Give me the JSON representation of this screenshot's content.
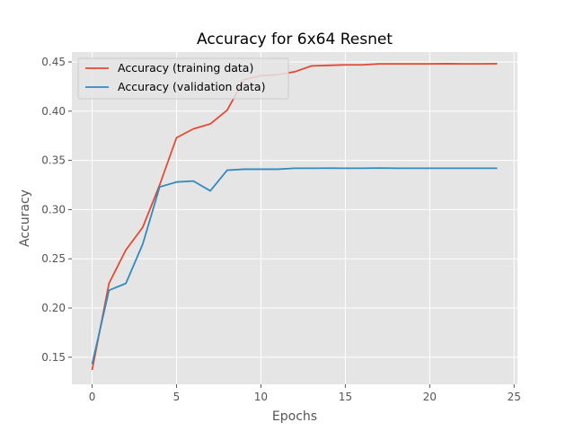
{
  "chart_data": {
    "type": "line",
    "title": "Accuracy for 6x64 Resnet",
    "xlabel": "Epochs",
    "ylabel": "Accuracy",
    "xlim": [
      -1.2,
      25.2
    ],
    "ylim": [
      0.1225,
      0.46
    ],
    "xticks": [
      0,
      5,
      10,
      15,
      20,
      25
    ],
    "yticks": [
      0.15,
      0.2,
      0.25,
      0.3,
      0.35,
      0.4,
      0.45
    ],
    "xtick_labels": [
      "0",
      "5",
      "10",
      "15",
      "20",
      "25"
    ],
    "ytick_labels": [
      "0.15",
      "0.20",
      "0.25",
      "0.30",
      "0.35",
      "0.40",
      "0.45"
    ],
    "grid": true,
    "legend_position": "top-left",
    "x": [
      0,
      1,
      2,
      3,
      4,
      5,
      6,
      7,
      8,
      9,
      10,
      11,
      12,
      13,
      14,
      15,
      16,
      17,
      18,
      19,
      20,
      21,
      22,
      23,
      24
    ],
    "series": [
      {
        "name": "Accuracy (training data)",
        "color": "#E24A33",
        "values": [
          0.137,
          0.225,
          0.259,
          0.282,
          0.325,
          0.373,
          0.382,
          0.387,
          0.401,
          0.432,
          0.436,
          0.437,
          0.44,
          0.446,
          0.4465,
          0.447,
          0.447,
          0.448,
          0.448,
          0.448,
          0.448,
          0.4482,
          0.448,
          0.448,
          0.4482
        ]
      },
      {
        "name": "Accuracy (validation data)",
        "color": "#348ABD",
        "values": [
          0.143,
          0.218,
          0.225,
          0.265,
          0.323,
          0.328,
          0.329,
          0.319,
          0.34,
          0.341,
          0.341,
          0.341,
          0.342,
          0.342,
          0.3421,
          0.342,
          0.342,
          0.3422,
          0.342,
          0.342,
          0.342,
          0.342,
          0.342,
          0.342,
          0.342
        ]
      }
    ]
  }
}
